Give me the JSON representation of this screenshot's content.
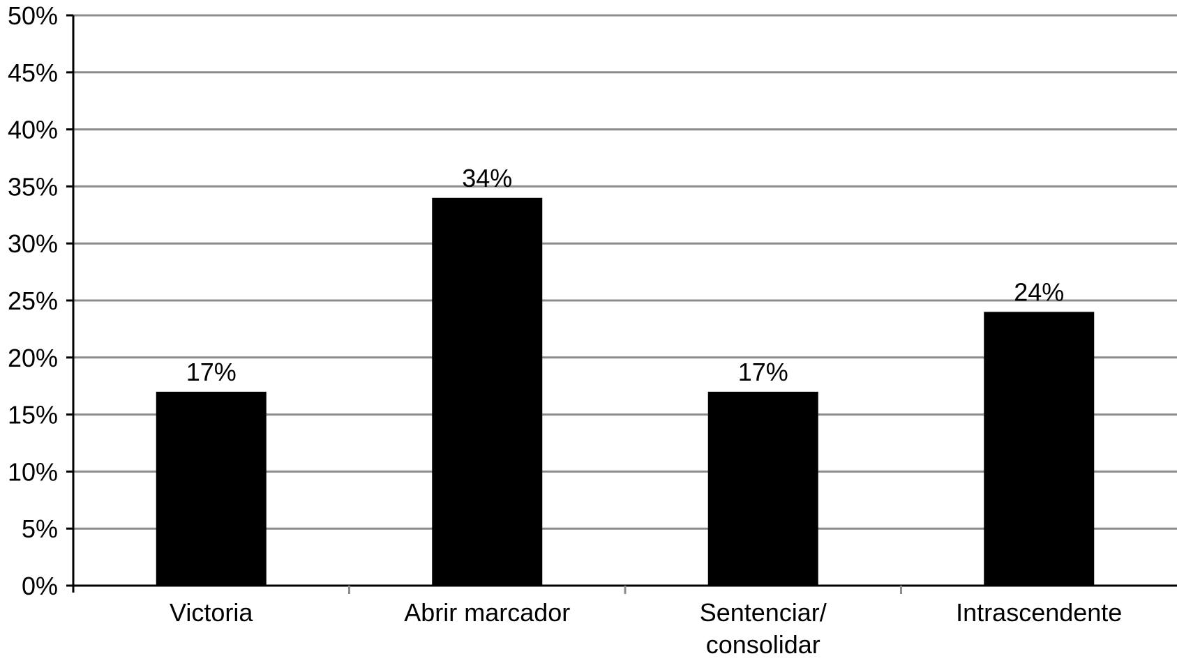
{
  "chart_data": {
    "type": "bar",
    "categories": [
      [
        "Victoria"
      ],
      [
        "Abrir marcador"
      ],
      [
        "Sentenciar/",
        "consolidar"
      ],
      [
        "Intrascendente"
      ]
    ],
    "values": [
      17,
      34,
      17,
      24
    ],
    "data_labels": [
      "17%",
      "34%",
      "17%",
      "24%"
    ],
    "ylim": [
      0,
      50
    ],
    "yticks": [
      0,
      5,
      10,
      15,
      20,
      25,
      30,
      35,
      40,
      45,
      50
    ],
    "ytick_labels": [
      "0%",
      "5%",
      "10%",
      "15%",
      "20%",
      "25%",
      "30%",
      "35%",
      "40%",
      "45%",
      "50%"
    ],
    "grid": true,
    "legend": "none",
    "title": "",
    "xlabel": "",
    "ylabel": "",
    "colors": {
      "bar": "#000000",
      "grid": "#8c8c8c",
      "axis": "#000000",
      "background": "#ffffff"
    }
  }
}
